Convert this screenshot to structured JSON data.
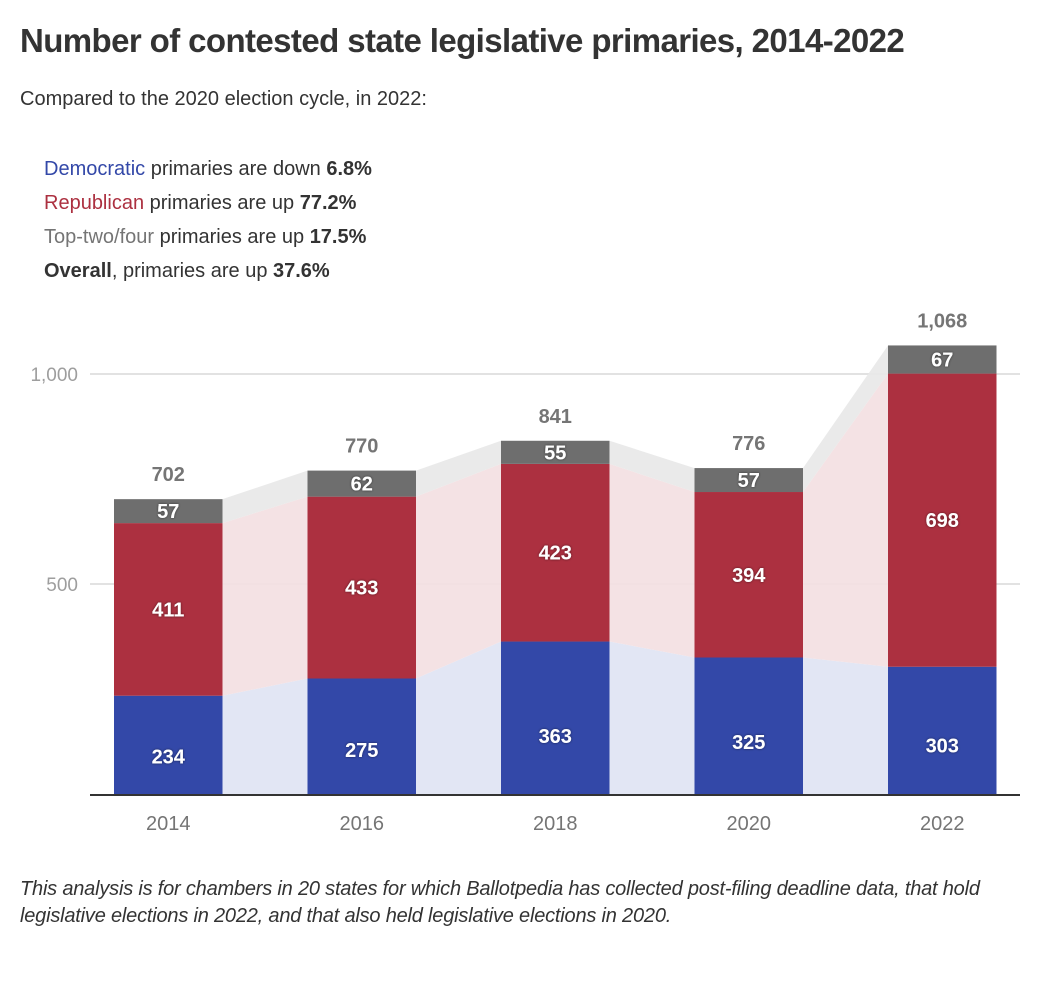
{
  "title": "Number of contested state legislative primaries, 2014-2022",
  "subtitle": "Compared to the 2020 election cycle, in 2022:",
  "summary": [
    {
      "party": "Democratic",
      "text": " primaries are down ",
      "value": "6.8%",
      "color": "#3348a8"
    },
    {
      "party": "Republican",
      "text": " primaries are up ",
      "value": "77.2%",
      "color": "#ac3040"
    },
    {
      "party": "Top-two/four",
      "text": " primaries are up ",
      "value": "17.5%",
      "color": "#757575"
    },
    {
      "party": "Overall",
      "text": ", primaries are up ",
      "value": "37.6%",
      "color": "#333333",
      "party_bold": true
    }
  ],
  "footnote": "This analysis is for chambers in 20 states for which Ballotpedia has collected post-filing deadline data, that hold legislative elections in 2022, and that also held legislative elections in 2020.",
  "chart_data": {
    "type": "bar",
    "stacked": true,
    "title": "Number of contested state legislative primaries, 2014-2022",
    "xlabel": "",
    "ylabel": "",
    "categories": [
      "2014",
      "2016",
      "2018",
      "2020",
      "2022"
    ],
    "series": [
      {
        "name": "Democratic",
        "color": "#3348a8",
        "area_color": "#e0e4f3",
        "values": [
          234,
          275,
          363,
          325,
          303
        ]
      },
      {
        "name": "Republican",
        "color": "#ac3040",
        "area_color": "#f3dfe2",
        "values": [
          411,
          433,
          423,
          394,
          698
        ]
      },
      {
        "name": "Top-two/four",
        "color": "#6e6e6e",
        "area_color": "#e8e8e8",
        "values": [
          57,
          62,
          55,
          57,
          67
        ]
      }
    ],
    "totals": [
      702,
      770,
      841,
      776,
      1068
    ],
    "total_labels": [
      "702",
      "770",
      "841",
      "776",
      "1,068"
    ],
    "ylim": [
      0,
      1000
    ],
    "yticks": [
      500,
      1000
    ],
    "ytick_labels": [
      "500",
      "1,000"
    ],
    "grid": true,
    "connector_areas": true,
    "legend": "none"
  }
}
